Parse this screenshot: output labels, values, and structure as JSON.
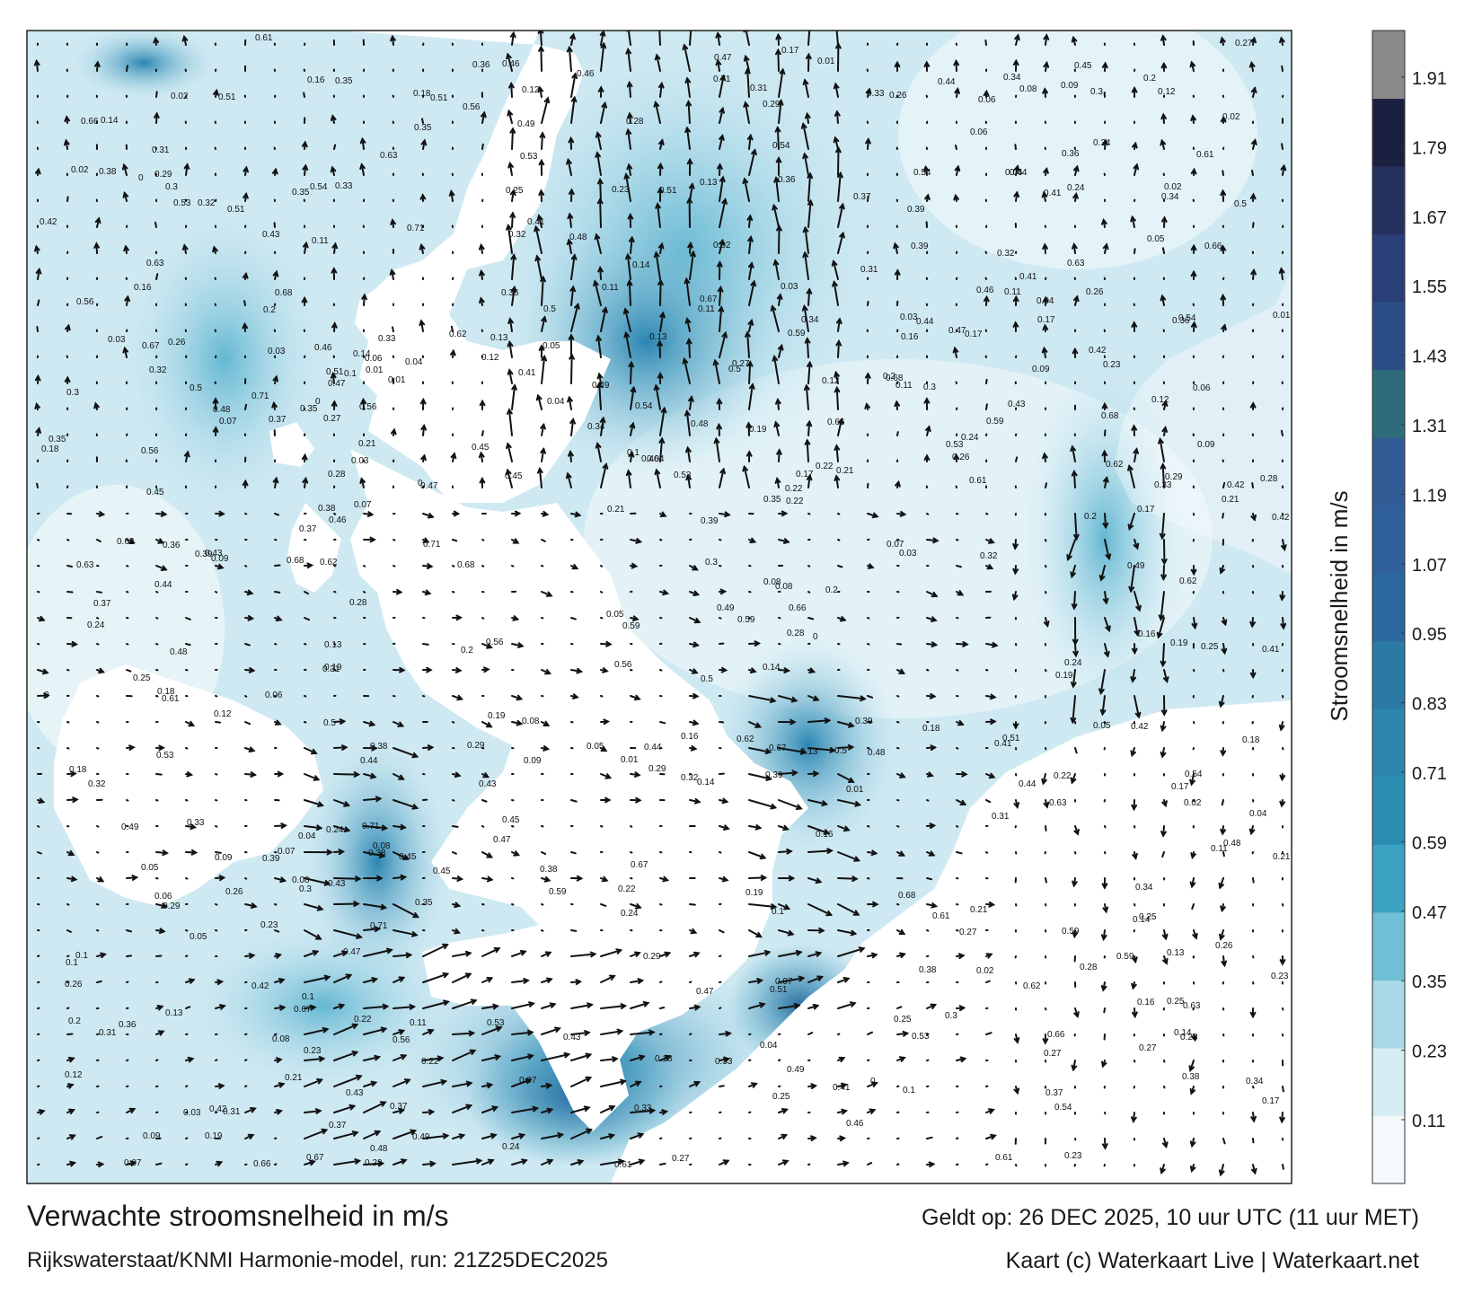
{
  "title": "Verwachte stroomsnelheid in m/s",
  "subtitle": "Rijkswaterstaat/KNMI Harmonie-model, run: 21Z25DEC2025",
  "valid_time": "Geldt op: 26 DEC 2025, 10 uur UTC (11 uur MET)",
  "credit": "Kaart (c) Waterkaart Live | Waterkaart.net",
  "colorbar": {
    "label": "Stroomsnelheid in m/s",
    "ticks": [
      "0.11",
      "0.23",
      "0.35",
      "0.47",
      "0.59",
      "0.71",
      "0.83",
      "0.95",
      "1.07",
      "1.19",
      "1.31",
      "1.43",
      "1.55",
      "1.67",
      "1.79",
      "1.91"
    ],
    "colors": [
      "#f4fafc",
      "#d6edf4",
      "#a9d8e6",
      "#6fbfd6",
      "#3ba2c2",
      "#2a8eb3",
      "#2d86ad",
      "#2b7aa6",
      "#2c67a0",
      "#30609b",
      "#305b95",
      "#2f6c7b",
      "#2b4e86",
      "#2a3f78",
      "#26305f",
      "#1b2040",
      "#8a8a8a"
    ]
  },
  "map_labels": [
    {
      "v": "0.14"
    },
    {
      "v": "0.13"
    },
    {
      "v": "0.1"
    },
    {
      "v": "0.12"
    },
    {
      "v": "0.06"
    },
    {
      "v": "0.08"
    },
    {
      "v": "0.11"
    },
    {
      "v": "0.09"
    },
    {
      "v": "0.03"
    },
    {
      "v": "0.04"
    },
    {
      "v": "0.05"
    },
    {
      "v": "0.07"
    },
    {
      "v": "0.02"
    },
    {
      "v": "0.16"
    },
    {
      "v": "0.17"
    },
    {
      "v": "0.18"
    },
    {
      "v": "0.19"
    },
    {
      "v": "0.2"
    },
    {
      "v": "0.21"
    },
    {
      "v": "0.22"
    },
    {
      "v": "0.23"
    },
    {
      "v": "0.24"
    },
    {
      "v": "0.25"
    },
    {
      "v": "0.26"
    },
    {
      "v": "0.27"
    },
    {
      "v": "0.28"
    },
    {
      "v": "0.29"
    },
    {
      "v": "0.3"
    },
    {
      "v": "0.31"
    },
    {
      "v": "0.32"
    },
    {
      "v": "0.33"
    },
    {
      "v": "0.34"
    },
    {
      "v": "0.35"
    },
    {
      "v": "0.36"
    },
    {
      "v": "0.37"
    },
    {
      "v": "0.38"
    },
    {
      "v": "0.39"
    },
    {
      "v": "0.41"
    },
    {
      "v": "0.42"
    },
    {
      "v": "0.43"
    },
    {
      "v": "0.44"
    },
    {
      "v": "0.45"
    },
    {
      "v": "0.46"
    },
    {
      "v": "0.47"
    },
    {
      "v": "0.48"
    },
    {
      "v": "0.49"
    },
    {
      "v": "0.5"
    },
    {
      "v": "0.51"
    },
    {
      "v": "0.53"
    },
    {
      "v": "0.54"
    },
    {
      "v": "0.56"
    },
    {
      "v": "0.59"
    },
    {
      "v": "0.61"
    },
    {
      "v": "0.62"
    },
    {
      "v": "0.63"
    },
    {
      "v": "0.66"
    },
    {
      "v": "0.67"
    },
    {
      "v": "0.68"
    },
    {
      "v": "0.71"
    },
    {
      "v": "0.01"
    },
    {
      "v": "0"
    }
  ]
}
